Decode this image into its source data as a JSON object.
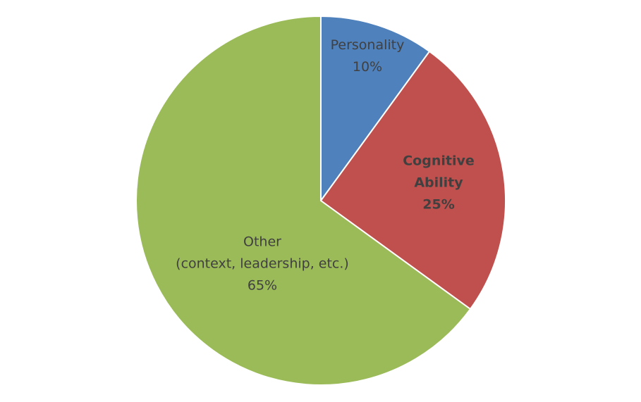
{
  "chart_data": {
    "type": "pie",
    "categories": [
      "Personality",
      "Cognitive\nAbility",
      "Other\n(context, leadership, etc.)"
    ],
    "values": [
      10,
      25,
      65
    ],
    "value_labels": [
      "10%",
      "25%",
      "65%"
    ],
    "colors": [
      "#4f81bd",
      "#c0504d",
      "#9bbb59"
    ]
  }
}
